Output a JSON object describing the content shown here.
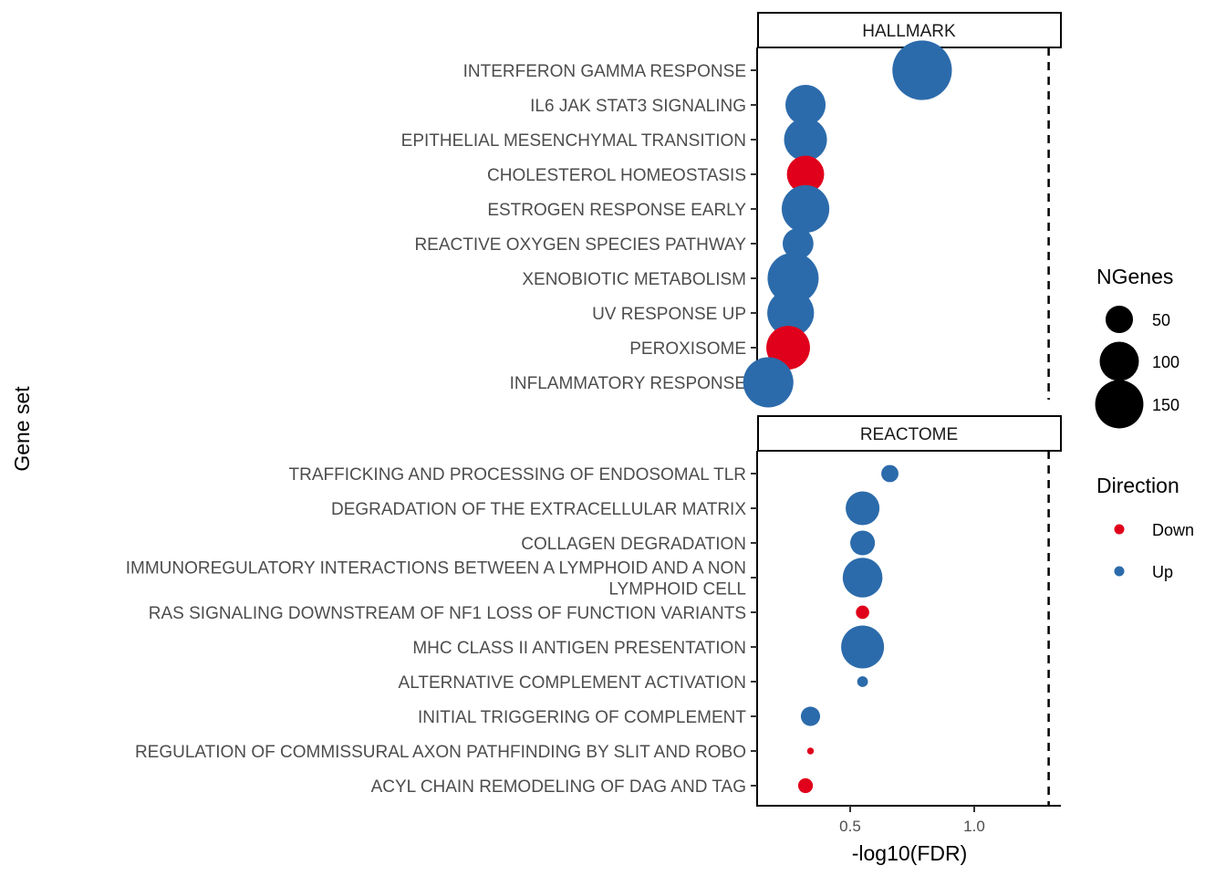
{
  "chart_data": {
    "type": "scatter",
    "xlabel": "-log10(FDR)",
    "ylabel": "Gene set",
    "x_ticks": [
      0.5,
      1.0
    ],
    "x_tick_labels": [
      "0.5",
      "1.0"
    ],
    "xlim": [
      0.125,
      1.35
    ],
    "threshold_line": 1.3,
    "colors": {
      "Down": "#e0001b",
      "Up": "#2c6bab"
    },
    "size_legend": {
      "title": "NGenes",
      "values": [
        50,
        100,
        150
      ],
      "labels": [
        "50",
        "100",
        "150"
      ]
    },
    "color_legend": {
      "title": "Direction",
      "items": [
        "Down",
        "Up"
      ]
    },
    "panels": [
      {
        "name": "HALLMARK",
        "rows": [
          {
            "label": [
              "INTERFERON GAMMA RESPONSE"
            ],
            "x": 0.79,
            "ngenes": 200,
            "direction": "Up"
          },
          {
            "label": [
              "IL6 JAK STAT3 SIGNALING"
            ],
            "x": 0.32,
            "ngenes": 87,
            "direction": "Up"
          },
          {
            "label": [
              "EPITHELIAL MESENCHYMAL TRANSITION"
            ],
            "x": 0.32,
            "ngenes": 100,
            "direction": "Up"
          },
          {
            "label": [
              "CHOLESTEROL HOMEOSTASIS"
            ],
            "x": 0.32,
            "ngenes": 74,
            "direction": "Down"
          },
          {
            "label": [
              "ESTROGEN RESPONSE EARLY"
            ],
            "x": 0.32,
            "ngenes": 125,
            "direction": "Up"
          },
          {
            "label": [
              "REACTIVE OXYGEN SPECIES PATHWAY"
            ],
            "x": 0.29,
            "ngenes": 49,
            "direction": "Up"
          },
          {
            "label": [
              "XENOBIOTIC METABOLISM"
            ],
            "x": 0.27,
            "ngenes": 145,
            "direction": "Up"
          },
          {
            "label": [
              "UV RESPONSE UP"
            ],
            "x": 0.26,
            "ngenes": 120,
            "direction": "Up"
          },
          {
            "label": [
              "PEROXISOME"
            ],
            "x": 0.25,
            "ngenes": 104,
            "direction": "Down"
          },
          {
            "label": [
              "INFLAMMATORY RESPONSE"
            ],
            "x": 0.17,
            "ngenes": 140,
            "direction": "Up"
          }
        ]
      },
      {
        "name": "REACTOME",
        "rows": [
          {
            "label": [
              "TRAFFICKING AND PROCESSING OF ENDOSOMAL TLR"
            ],
            "x": 0.66,
            "ngenes": 13,
            "direction": "Up"
          },
          {
            "label": [
              "DEGRADATION OF THE EXTRACELLULAR MATRIX"
            ],
            "x": 0.55,
            "ngenes": 60,
            "direction": "Up"
          },
          {
            "label": [
              "COLLAGEN DEGRADATION"
            ],
            "x": 0.55,
            "ngenes": 30,
            "direction": "Up"
          },
          {
            "label": [
              "IMMUNOREGULATORY INTERACTIONS BETWEEN A LYMPHOID AND A NON",
              "LYMPHOID CELL"
            ],
            "x": 0.55,
            "ngenes": 85,
            "direction": "Up"
          },
          {
            "label": [
              "RAS SIGNALING DOWNSTREAM OF NF1 LOSS OF FUNCTION VARIANTS"
            ],
            "x": 0.55,
            "ngenes": 7,
            "direction": "Down"
          },
          {
            "label": [
              "MHC CLASS II ANTIGEN PRESENTATION"
            ],
            "x": 0.55,
            "ngenes": 100,
            "direction": "Up"
          },
          {
            "label": [
              "ALTERNATIVE COMPLEMENT ACTIVATION"
            ],
            "x": 0.55,
            "ngenes": 4,
            "direction": "Up"
          },
          {
            "label": [
              "INITIAL TRIGGERING OF COMPLEMENT"
            ],
            "x": 0.34,
            "ngenes": 17,
            "direction": "Up"
          },
          {
            "label": [
              "REGULATION OF COMMISSURAL AXON PATHFINDING BY SLIT AND ROBO"
            ],
            "x": 0.34,
            "ngenes": 1,
            "direction": "Down"
          },
          {
            "label": [
              "ACYL CHAIN REMODELING OF DAG AND TAG"
            ],
            "x": 0.32,
            "ngenes": 9,
            "direction": "Down"
          }
        ]
      }
    ]
  }
}
